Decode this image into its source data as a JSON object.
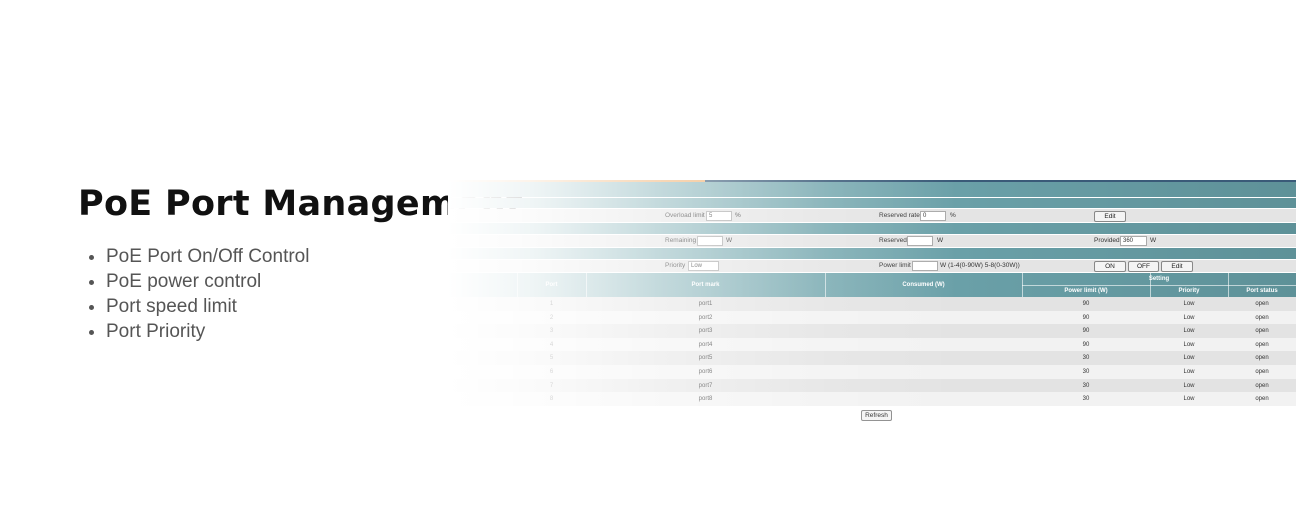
{
  "title": "PoE Port Management",
  "bullets": [
    "PoE Port On/Off Control",
    "PoE power control",
    "Port speed limit",
    "Port Priority"
  ],
  "screenshot": {
    "overload_limit": {
      "label": "Overload limit",
      "value": "5",
      "unit": "%"
    },
    "reserved_rate": {
      "label": "Reserved rate",
      "value": "0",
      "unit": "%"
    },
    "edit1": "Edit",
    "remaining": {
      "label": "Remaining",
      "unit": "W"
    },
    "reserved": {
      "label": "Reserved",
      "unit": "W"
    },
    "provided": {
      "label": "Provided",
      "value": "360",
      "unit": "W"
    },
    "priority": {
      "label": "Priority",
      "value": "Low"
    },
    "power_limit": {
      "label": "Power limit",
      "unit": "W (1-4(0-90W) 5-8(0-30W))"
    },
    "buttons": [
      "ON",
      "OFF",
      "Edit"
    ],
    "table": {
      "headers": [
        "Port",
        "Port mark",
        "Consumed (W)"
      ],
      "setting": "Setting",
      "sub_headers": [
        "Power limit (W)",
        "Priority",
        "Port status"
      ],
      "rows": [
        {
          "port": 1,
          "mark": "port1",
          "power_limit": 90,
          "priority": "Low",
          "status": "open"
        },
        {
          "port": 2,
          "mark": "port2",
          "power_limit": 90,
          "priority": "Low",
          "status": "open"
        },
        {
          "port": 3,
          "mark": "port3",
          "power_limit": 90,
          "priority": "Low",
          "status": "open"
        },
        {
          "port": 4,
          "mark": "port4",
          "power_limit": 90,
          "priority": "Low",
          "status": "open"
        },
        {
          "port": 5,
          "mark": "port5",
          "power_limit": 30,
          "priority": "Low",
          "status": "open"
        },
        {
          "port": 6,
          "mark": "port6",
          "power_limit": 30,
          "priority": "Low",
          "status": "open"
        },
        {
          "port": 7,
          "mark": "port7",
          "power_limit": 30,
          "priority": "Low",
          "status": "open"
        },
        {
          "port": 8,
          "mark": "port8",
          "power_limit": 30,
          "priority": "Low",
          "status": "open"
        }
      ]
    },
    "refresh": "Refresh"
  }
}
